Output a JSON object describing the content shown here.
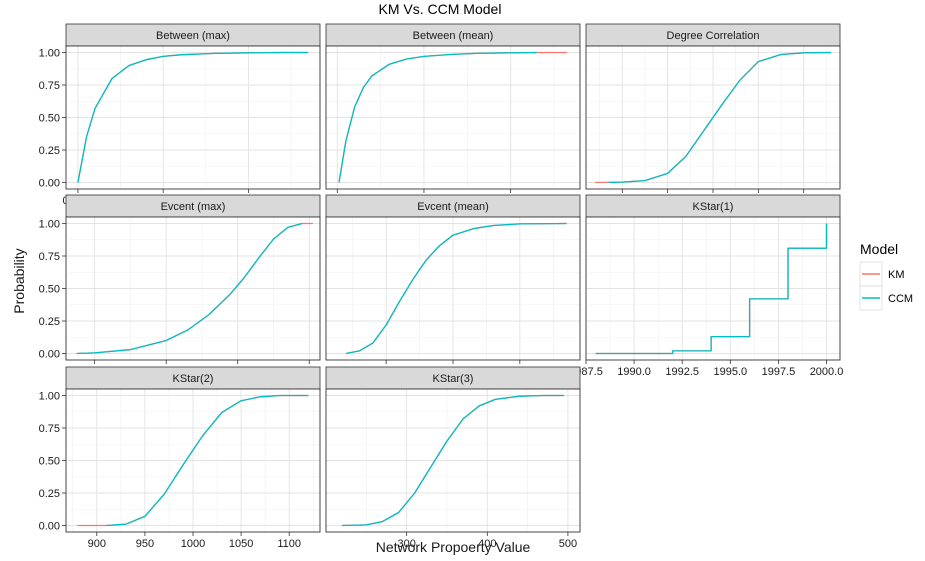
{
  "chart_data": {
    "type": "line",
    "title": "KM Vs. CCM Model",
    "xlabel": "Network Propoerty Value",
    "ylabel": "Probability",
    "grid": true,
    "y_ticks": [
      0.0,
      0.25,
      0.5,
      0.75,
      1.0
    ],
    "y_tick_labels": [
      "0.00",
      "0.25",
      "0.50",
      "0.75",
      "1.00"
    ],
    "ylim": [
      -0.05,
      1.05
    ],
    "legend": {
      "title": "Model",
      "placement": "right",
      "entries": [
        {
          "name": "KM",
          "color": "#F8766D"
        },
        {
          "name": "CCM",
          "color": "#00BFC4"
        }
      ]
    },
    "panels": [
      {
        "title": "Between (max)",
        "xlim": [
          -7000,
          142000
        ],
        "x_ticks": [
          0,
          50000,
          100000
        ],
        "x_tick_labels": [
          "0e+00",
          "5e+04",
          "1e+05"
        ],
        "series": [
          {
            "name": "KM",
            "x": [
              0,
              5000,
              10000,
              20000,
              30000,
              40000,
              50000,
              60000,
              80000,
              100000,
              120000,
              135000
            ],
            "values": [
              0.0,
              0.35,
              0.57,
              0.8,
              0.9,
              0.945,
              0.97,
              0.982,
              0.993,
              0.998,
              1.0,
              1.0
            ]
          },
          {
            "name": "CCM",
            "x": [
              0,
              5000,
              10000,
              20000,
              30000,
              40000,
              50000,
              60000,
              80000,
              100000,
              120000,
              135000
            ],
            "values": [
              0.0,
              0.35,
              0.57,
              0.8,
              0.9,
              0.945,
              0.97,
              0.982,
              0.993,
              0.998,
              1.0,
              1.0
            ]
          }
        ]
      },
      {
        "title": "Between (mean)",
        "xlim": [
          -130,
          2800
        ],
        "x_ticks": [
          0,
          1000,
          2000
        ],
        "x_tick_labels": [
          "0",
          "1000",
          "2000"
        ],
        "series": [
          {
            "name": "KM",
            "x": [
              20,
              100,
              200,
              300,
              400,
              600,
              800,
              1000,
              1300,
              1600,
              2000,
              2400,
              2650
            ],
            "values": [
              0.0,
              0.32,
              0.58,
              0.73,
              0.82,
              0.91,
              0.95,
              0.97,
              0.985,
              0.993,
              0.998,
              1.0,
              1.0
            ]
          },
          {
            "name": "CCM",
            "x": [
              20,
              100,
              200,
              300,
              400,
              600,
              800,
              1000,
              1300,
              1600,
              2000,
              2300
            ],
            "values": [
              0.0,
              0.32,
              0.58,
              0.73,
              0.82,
              0.91,
              0.95,
              0.97,
              0.985,
              0.993,
              0.998,
              1.0
            ]
          }
        ]
      },
      {
        "title": "Degree Correlation",
        "xlim": [
          -0.14,
          0.14
        ],
        "x_ticks": [
          -0.1,
          -0.05,
          0.0,
          0.05,
          0.1
        ],
        "x_tick_labels": [
          "-0.10",
          "-0.05",
          "0.00",
          "0.05",
          "0.10"
        ],
        "series": [
          {
            "name": "KM",
            "x": [
              -0.13,
              -0.1,
              -0.075,
              -0.05,
              -0.03,
              -0.01,
              0.0,
              0.01,
              0.03,
              0.05,
              0.075,
              0.1,
              0.13
            ],
            "values": [
              0.0,
              0.003,
              0.015,
              0.07,
              0.2,
              0.4,
              0.5,
              0.6,
              0.79,
              0.93,
              0.985,
              0.998,
              1.0
            ]
          },
          {
            "name": "CCM",
            "x": [
              -0.115,
              -0.1,
              -0.075,
              -0.05,
              -0.03,
              -0.01,
              0.0,
              0.01,
              0.03,
              0.05,
              0.075,
              0.1,
              0.13
            ],
            "values": [
              0.0,
              0.003,
              0.015,
              0.07,
              0.2,
              0.4,
              0.5,
              0.6,
              0.79,
              0.93,
              0.985,
              0.998,
              1.0
            ]
          }
        ]
      },
      {
        "title": "Evcent (max)",
        "xlim": [
          0.26,
          0.615
        ],
        "x_ticks": [
          0.3,
          0.4,
          0.5,
          0.6
        ],
        "x_tick_labels": [
          "0.3",
          "0.4",
          "0.5",
          "0.6"
        ],
        "series": [
          {
            "name": "KM",
            "x": [
              0.275,
              0.3,
              0.35,
              0.4,
              0.43,
              0.46,
              0.49,
              0.51,
              0.53,
              0.55,
              0.57,
              0.59,
              0.605
            ],
            "values": [
              0.0,
              0.005,
              0.03,
              0.1,
              0.18,
              0.3,
              0.46,
              0.59,
              0.74,
              0.88,
              0.97,
              1.0,
              1.0
            ]
          },
          {
            "name": "CCM",
            "x": [
              0.275,
              0.3,
              0.35,
              0.4,
              0.43,
              0.46,
              0.49,
              0.51,
              0.53,
              0.55,
              0.57,
              0.59
            ],
            "values": [
              0.0,
              0.005,
              0.03,
              0.1,
              0.18,
              0.3,
              0.46,
              0.59,
              0.74,
              0.88,
              0.97,
              1.0
            ]
          }
        ]
      },
      {
        "title": "Evcent (mean)",
        "xlim": [
          0.0011,
          0.0049
        ],
        "x_ticks": [
          0.002,
          0.003,
          0.004
        ],
        "x_tick_labels": [
          "0.002",
          "0.003",
          "0.004"
        ],
        "series": [
          {
            "name": "KM",
            "x": [
              0.0014,
              0.0016,
              0.0018,
              0.002,
              0.0022,
              0.0024,
              0.0026,
              0.0028,
              0.003,
              0.0033,
              0.0036,
              0.004,
              0.0047
            ],
            "values": [
              0.0,
              0.02,
              0.08,
              0.22,
              0.4,
              0.57,
              0.72,
              0.83,
              0.91,
              0.96,
              0.985,
              0.997,
              1.0
            ]
          },
          {
            "name": "CCM",
            "x": [
              0.0014,
              0.0016,
              0.0018,
              0.002,
              0.0022,
              0.0024,
              0.0026,
              0.0028,
              0.003,
              0.0033,
              0.0036,
              0.004,
              0.0047
            ],
            "values": [
              0.0,
              0.02,
              0.08,
              0.22,
              0.4,
              0.57,
              0.72,
              0.83,
              0.91,
              0.96,
              0.985,
              0.997,
              1.0
            ]
          }
        ]
      },
      {
        "title": "KStar(1)",
        "xlim": [
          1987.5,
          2000.7
        ],
        "x_ticks": [
          1987.5,
          1990.0,
          1992.5,
          1995.0,
          1997.5,
          2000.0
        ],
        "x_tick_labels": [
          "1987.5",
          "1990.0",
          "1992.5",
          "1995.0",
          "1997.5",
          "2000.0"
        ],
        "step": true,
        "series": [
          {
            "name": "KM",
            "x": [
              1988,
              1992,
              1994,
              1996,
              1998,
              2000,
              2000
            ],
            "values": [
              0.0,
              0.02,
              0.13,
              0.42,
              0.81,
              0.81,
              1.0
            ]
          },
          {
            "name": "CCM",
            "x": [
              1988,
              1992,
              1994,
              1996,
              1998,
              2000,
              2000
            ],
            "values": [
              0.0,
              0.02,
              0.13,
              0.42,
              0.81,
              0.81,
              1.0
            ]
          }
        ]
      },
      {
        "title": "KStar(2)",
        "xlim": [
          868,
          1132
        ],
        "x_ticks": [
          900,
          950,
          1000,
          1050,
          1100
        ],
        "x_tick_labels": [
          "900",
          "950",
          "1000",
          "1050",
          "1100"
        ],
        "series": [
          {
            "name": "KM",
            "x": [
              880,
              910,
              930,
              950,
              970,
              990,
              1000,
              1010,
              1030,
              1050,
              1070,
              1090,
              1120
            ],
            "values": [
              0.0,
              0.0,
              0.01,
              0.07,
              0.24,
              0.47,
              0.58,
              0.69,
              0.87,
              0.96,
              0.99,
              1.0,
              1.0
            ]
          },
          {
            "name": "CCM",
            "x": [
              910,
              930,
              950,
              970,
              990,
              1000,
              1010,
              1030,
              1050,
              1070,
              1090,
              1120
            ],
            "values": [
              0.0,
              0.01,
              0.07,
              0.24,
              0.47,
              0.58,
              0.69,
              0.87,
              0.96,
              0.99,
              1.0,
              1.0
            ]
          }
        ]
      },
      {
        "title": "KStar(3)",
        "xlim": [
          200,
          515
        ],
        "x_ticks": [
          300,
          400,
          500
        ],
        "x_tick_labels": [
          "300",
          "400",
          "500"
        ],
        "series": [
          {
            "name": "KM",
            "x": [
              220,
              250,
              270,
              290,
              310,
              330,
              350,
              370,
              390,
              410,
              440,
              470,
              495
            ],
            "values": [
              0.0,
              0.005,
              0.03,
              0.1,
              0.25,
              0.45,
              0.65,
              0.82,
              0.92,
              0.97,
              0.995,
              1.0,
              1.0
            ]
          },
          {
            "name": "CCM",
            "x": [
              220,
              250,
              270,
              290,
              310,
              330,
              350,
              370,
              390,
              410,
              440,
              470,
              495
            ],
            "values": [
              0.0,
              0.005,
              0.03,
              0.1,
              0.25,
              0.45,
              0.65,
              0.82,
              0.92,
              0.97,
              0.995,
              1.0,
              1.0
            ]
          }
        ]
      }
    ]
  }
}
